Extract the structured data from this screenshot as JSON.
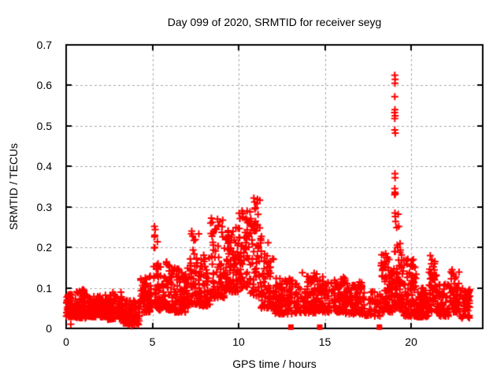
{
  "chart_data": {
    "type": "scatter",
    "title": "Day 099 of 2020, SRMTID for receiver seyg",
    "xlabel": "GPS time / hours",
    "ylabel": "SRMTID / TECUs",
    "xlim": [
      0,
      24.15
    ],
    "ylim": [
      0,
      0.7
    ],
    "xticks": [
      0,
      5,
      10,
      15,
      20
    ],
    "xtick_labels": [
      "0",
      "5",
      "10",
      "15",
      "20"
    ],
    "yticks": [
      0,
      0.1,
      0.2,
      0.3,
      0.4,
      0.5,
      0.6,
      0.7
    ],
    "ytick_labels": [
      "0",
      "0.1",
      "0.2",
      "0.3",
      "0.4",
      "0.5",
      "0.6",
      "0.7"
    ],
    "grid": true,
    "legend": "none",
    "marker": "plus",
    "seed": 20200099,
    "colors": {
      "points": "#ff0000",
      "flags": "#ff0000",
      "grid": "#a8a8a8",
      "axis": "#000000",
      "text": "#000000",
      "background": "#ffffff"
    },
    "series": [
      {
        "name": "srmtid",
        "marker": "plus",
        "segments": [
          {
            "t0": 0.0,
            "t1": 0.6,
            "n": 70,
            "ymin": 0.028,
            "ymax": 0.085,
            "skew": 1.3
          },
          {
            "t0": 0.6,
            "t1": 1.2,
            "n": 70,
            "ymin": 0.025,
            "ymax": 0.095,
            "skew": 1.5
          },
          {
            "t0": 1.2,
            "t1": 2.4,
            "n": 140,
            "ymin": 0.028,
            "ymax": 0.082,
            "skew": 1.4
          },
          {
            "t0": 2.4,
            "t1": 3.3,
            "n": 100,
            "ymin": 0.022,
            "ymax": 0.09,
            "skew": 1.5
          },
          {
            "t0": 3.3,
            "t1": 4.3,
            "n": 110,
            "ymin": 0.008,
            "ymax": 0.07,
            "skew": 1.2
          },
          {
            "t0": 4.3,
            "t1": 5.0,
            "n": 65,
            "ymin": 0.04,
            "ymax": 0.13,
            "skew": 1.6
          },
          {
            "t0": 5.05,
            "t1": 5.3,
            "n": 28,
            "ymin": 0.06,
            "ymax": 0.255,
            "skew": 2.2
          },
          {
            "t0": 5.3,
            "t1": 6.3,
            "n": 95,
            "ymin": 0.045,
            "ymax": 0.165,
            "skew": 1.7
          },
          {
            "t0": 6.3,
            "t1": 7.1,
            "n": 80,
            "ymin": 0.04,
            "ymax": 0.15,
            "skew": 1.6
          },
          {
            "t0": 7.1,
            "t1": 7.7,
            "n": 55,
            "ymin": 0.06,
            "ymax": 0.24,
            "skew": 1.9
          },
          {
            "t0": 7.7,
            "t1": 8.35,
            "n": 65,
            "ymin": 0.055,
            "ymax": 0.185,
            "skew": 1.6
          },
          {
            "t0": 8.35,
            "t1": 9.2,
            "n": 85,
            "ymin": 0.075,
            "ymax": 0.27,
            "skew": 1.9
          },
          {
            "t0": 9.2,
            "t1": 10.0,
            "n": 85,
            "ymin": 0.09,
            "ymax": 0.25,
            "skew": 1.7
          },
          {
            "t0": 10.0,
            "t1": 10.6,
            "n": 62,
            "ymin": 0.1,
            "ymax": 0.29,
            "skew": 1.7
          },
          {
            "t0": 10.6,
            "t1": 11.3,
            "n": 65,
            "ymin": 0.08,
            "ymax": 0.325,
            "skew": 1.8
          },
          {
            "t0": 11.3,
            "t1": 12.1,
            "n": 75,
            "ymin": 0.05,
            "ymax": 0.23,
            "skew": 1.9
          },
          {
            "t0": 12.1,
            "t1": 13.2,
            "n": 100,
            "ymin": 0.035,
            "ymax": 0.125,
            "skew": 1.5
          },
          {
            "t0": 13.2,
            "t1": 14.6,
            "n": 120,
            "ymin": 0.038,
            "ymax": 0.14,
            "skew": 1.7
          },
          {
            "t0": 14.6,
            "t1": 16.2,
            "n": 140,
            "ymin": 0.04,
            "ymax": 0.13,
            "skew": 1.5
          },
          {
            "t0": 16.2,
            "t1": 17.3,
            "n": 95,
            "ymin": 0.035,
            "ymax": 0.115,
            "skew": 1.5
          },
          {
            "t0": 17.3,
            "t1": 18.25,
            "n": 42,
            "ymin": 0.03,
            "ymax": 0.095,
            "skew": 1.4
          },
          {
            "t0": 18.25,
            "t1": 18.95,
            "n": 85,
            "ymin": 0.04,
            "ymax": 0.19,
            "skew": 1.6
          },
          {
            "t0": 19.0,
            "t1": 19.5,
            "n": 70,
            "ymin": 0.05,
            "ymax": 0.21,
            "skew": 1.8
          },
          {
            "t0": 19.5,
            "t1": 20.3,
            "n": 95,
            "ymin": 0.03,
            "ymax": 0.175,
            "skew": 1.8
          },
          {
            "t0": 20.3,
            "t1": 21.0,
            "n": 75,
            "ymin": 0.028,
            "ymax": 0.1,
            "skew": 1.4
          },
          {
            "t0": 21.0,
            "t1": 21.5,
            "n": 55,
            "ymin": 0.04,
            "ymax": 0.185,
            "skew": 1.7
          },
          {
            "t0": 21.5,
            "t1": 22.2,
            "n": 65,
            "ymin": 0.03,
            "ymax": 0.11,
            "skew": 1.5
          },
          {
            "t0": 22.2,
            "t1": 22.8,
            "n": 60,
            "ymin": 0.04,
            "ymax": 0.148,
            "skew": 1.6
          },
          {
            "t0": 22.8,
            "t1": 23.4,
            "n": 55,
            "ymin": 0.025,
            "ymax": 0.1,
            "skew": 1.4
          }
        ],
        "outliers": [
          [
            19.05,
            0.625
          ],
          [
            19.07,
            0.615
          ],
          [
            19.06,
            0.605
          ],
          [
            19.05,
            0.572
          ],
          [
            19.06,
            0.54
          ],
          [
            19.04,
            0.533
          ],
          [
            19.07,
            0.525
          ],
          [
            19.05,
            0.518
          ],
          [
            19.05,
            0.49
          ],
          [
            19.08,
            0.482
          ],
          [
            19.06,
            0.382
          ],
          [
            19.07,
            0.372
          ],
          [
            19.05,
            0.345
          ],
          [
            19.06,
            0.336
          ],
          [
            19.08,
            0.332
          ],
          [
            19.04,
            0.33
          ],
          [
            19.06,
            0.285
          ],
          [
            19.08,
            0.276
          ],
          [
            19.1,
            0.264
          ],
          [
            19.16,
            0.249
          ],
          [
            19.25,
            0.282
          ],
          [
            19.28,
            0.252
          ],
          [
            10.88,
            0.322
          ],
          [
            10.92,
            0.312
          ],
          [
            10.2,
            0.29
          ],
          [
            10.25,
            0.285
          ],
          [
            8.42,
            0.272
          ],
          [
            8.48,
            0.262
          ],
          [
            5.12,
            0.252
          ],
          [
            5.14,
            0.23
          ],
          [
            7.28,
            0.24
          ],
          [
            7.33,
            0.228
          ],
          [
            0.95,
            0.096
          ],
          [
            3.8,
            0.006
          ],
          [
            0.27,
            0.01
          ]
        ]
      },
      {
        "name": "flags",
        "marker": "square",
        "points": [
          [
            13.03,
            0.003
          ],
          [
            14.7,
            0.003
          ],
          [
            18.16,
            0.003
          ]
        ]
      }
    ]
  }
}
